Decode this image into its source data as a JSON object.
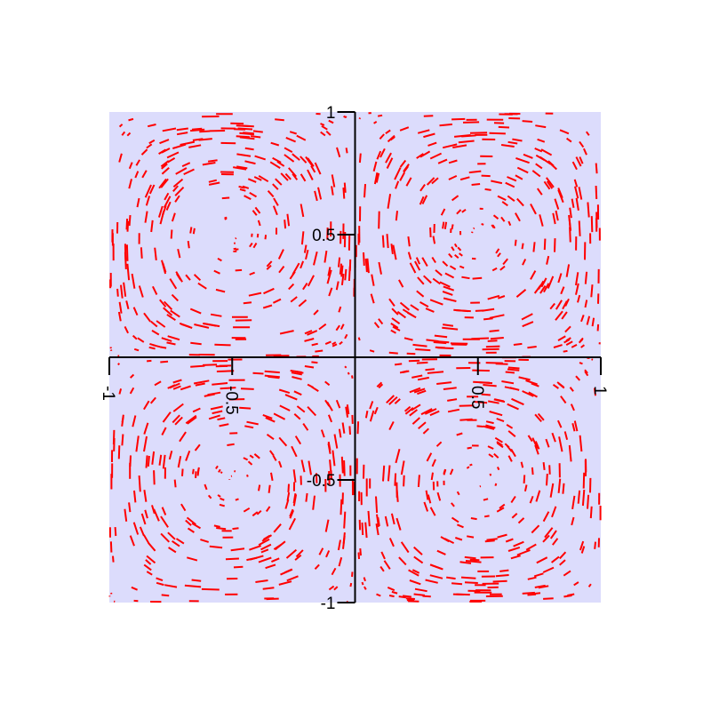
{
  "chart_data": {
    "type": "vector-field",
    "title": "",
    "xlabel": "",
    "ylabel": "",
    "xlim": [
      -1,
      1
    ],
    "ylim": [
      -1,
      1
    ],
    "x_ticks": [
      {
        "value": -1,
        "label": "-1"
      },
      {
        "value": -0.5,
        "label": "-0.5"
      },
      {
        "value": 0.5,
        "label": "0.5"
      },
      {
        "value": 1,
        "label": "1"
      }
    ],
    "y_ticks": [
      {
        "value": -1,
        "label": "-1"
      },
      {
        "value": -0.5,
        "label": "-0.5"
      },
      {
        "value": 0.5,
        "label": "0.5"
      },
      {
        "value": 1,
        "label": "1"
      }
    ],
    "x_tick_label_rotation_deg": 90,
    "axes_through_origin": true,
    "grid": false,
    "legend": "none",
    "field": {
      "description_of_pattern": "four counter-rotating vortices, one per quadrant",
      "vortex_centers": [
        [
          -0.5,
          0.5
        ],
        [
          0.5,
          0.5
        ],
        [
          -0.5,
          -0.5
        ],
        [
          0.5,
          -0.5
        ]
      ],
      "u": "-sin(pi*x)*cos(pi*y)",
      "v": "cos(pi*x)*sin(pi*y)",
      "sample_count": 1200,
      "sample_domain": [
        -1,
        1
      ]
    },
    "colors": {
      "plot_background": "#dcdcfc",
      "segment": "#ff0000",
      "axis": "#000000",
      "page_background": "#ffffff"
    }
  }
}
